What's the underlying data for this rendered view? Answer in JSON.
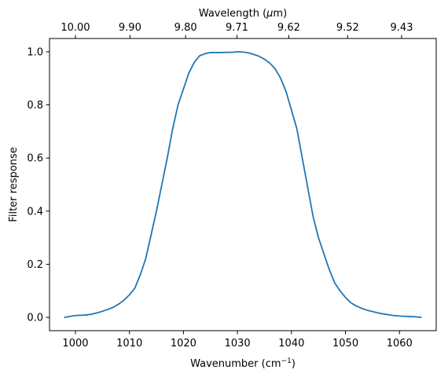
{
  "chart_data": {
    "type": "line",
    "title": "",
    "xlabel_prefix": "Wavenumber (cm",
    "xlabel_sup": "−1",
    "xlabel_suffix": ")",
    "ylabel": "Filter response",
    "top_xlabel_prefix": "Wavelength (",
    "top_xlabel_mu": "μ",
    "top_xlabel_suffix": "m)",
    "xlim": [
      995.2,
      1066.8
    ],
    "ylim": [
      -0.05,
      1.05
    ],
    "xticks": [
      {
        "value": 1000,
        "label": "1000"
      },
      {
        "value": 1010,
        "label": "1010"
      },
      {
        "value": 1020,
        "label": "1020"
      },
      {
        "value": 1030,
        "label": "1030"
      },
      {
        "value": 1040,
        "label": "1040"
      },
      {
        "value": 1050,
        "label": "1050"
      },
      {
        "value": 1060,
        "label": "1060"
      }
    ],
    "yticks": [
      {
        "value": 0.0,
        "label": "0.0"
      },
      {
        "value": 0.2,
        "label": "0.2"
      },
      {
        "value": 0.4,
        "label": "0.4"
      },
      {
        "value": 0.6,
        "label": "0.6"
      },
      {
        "value": 0.8,
        "label": "0.8"
      },
      {
        "value": 1.0,
        "label": "1.0"
      }
    ],
    "top_xticks": [
      {
        "value": 1000.0,
        "label": "10.00"
      },
      {
        "value": 1010.1,
        "label": "9.90"
      },
      {
        "value": 1020.4,
        "label": "9.80"
      },
      {
        "value": 1029.9,
        "label": "9.71"
      },
      {
        "value": 1039.5,
        "label": "9.62"
      },
      {
        "value": 1050.4,
        "label": "9.52"
      },
      {
        "value": 1060.4,
        "label": "9.43"
      }
    ],
    "grid": false,
    "series": [
      {
        "color": "#1f77b4",
        "x": [
          998,
          999,
          1000,
          1001,
          1002,
          1003,
          1004,
          1005,
          1006,
          1007,
          1008,
          1009,
          1010,
          1011,
          1012,
          1013,
          1014,
          1015,
          1016,
          1017,
          1018,
          1019,
          1020,
          1021,
          1022,
          1023,
          1024,
          1025,
          1026,
          1027,
          1028,
          1029,
          1030,
          1031,
          1032,
          1033,
          1034,
          1035,
          1036,
          1037,
          1038,
          1039,
          1040,
          1041,
          1042,
          1043,
          1044,
          1045,
          1046,
          1047,
          1048,
          1049,
          1050,
          1051,
          1052,
          1053,
          1054,
          1055,
          1056,
          1057,
          1058,
          1059,
          1060,
          1061,
          1062,
          1063,
          1064
        ],
        "y": [
          0.0,
          0.004,
          0.007,
          0.008,
          0.009,
          0.012,
          0.017,
          0.023,
          0.03,
          0.038,
          0.05,
          0.065,
          0.085,
          0.11,
          0.16,
          0.22,
          0.31,
          0.4,
          0.5,
          0.6,
          0.71,
          0.8,
          0.86,
          0.92,
          0.96,
          0.985,
          0.993,
          0.997,
          0.997,
          0.997,
          0.998,
          0.998,
          1.0,
          0.999,
          0.996,
          0.99,
          0.983,
          0.972,
          0.957,
          0.935,
          0.9,
          0.85,
          0.78,
          0.71,
          0.6,
          0.49,
          0.38,
          0.3,
          0.24,
          0.18,
          0.13,
          0.1,
          0.075,
          0.055,
          0.043,
          0.034,
          0.027,
          0.022,
          0.017,
          0.013,
          0.01,
          0.007,
          0.005,
          0.004,
          0.003,
          0.002,
          0.0
        ]
      }
    ]
  }
}
